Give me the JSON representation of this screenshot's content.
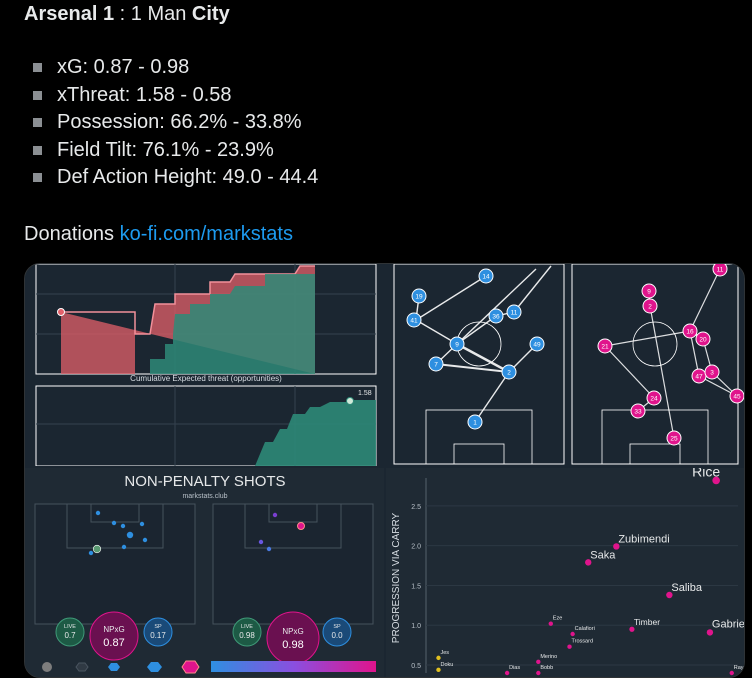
{
  "header": {
    "home_team": "Arsenal",
    "home_score": "1",
    "separator": ":",
    "away_score": "1",
    "away_team_prefix": "Man",
    "away_team_suffix": "City"
  },
  "stats": [
    {
      "label": "xG: 0.87 - 0.98"
    },
    {
      "label": "xThreat: 1.58 - 0.58"
    },
    {
      "label": "Possession: 66.2% - 33.8%"
    },
    {
      "label": "Field Tilt: 76.1% - 23.9%"
    },
    {
      "label": "Def Action Height: 49.0 - 44.4"
    }
  ],
  "donations": {
    "label": "Donations",
    "link": "ko-fi.com/markstats"
  },
  "colors": {
    "home": "#e3606a",
    "away": "#2e8a78",
    "home_node": "#2e8fe0",
    "away_node": "#e0148c",
    "link": "#1d9bf0"
  },
  "cumulative_panel": {
    "caption": "Cumulative Expected threat (opportunities)",
    "end_value": "1.58"
  },
  "shots_panel": {
    "title": "NON-PENALTY SHOTS",
    "subtitle": "markstats.club",
    "home": {
      "live_label": "LIVE",
      "live_value": "0.7",
      "npxg_label": "NPxG",
      "npxg_value": "0.87",
      "sp_label": "SP",
      "sp_value": "0.17"
    },
    "away": {
      "live_label": "LIVE",
      "live_value": "0.98",
      "npxg_label": "NPxG",
      "npxg_value": "0.98",
      "sp_label": "SP",
      "sp_value": "0.0"
    }
  },
  "pass_networks": {
    "home_nodes": [
      "14",
      "19",
      "41",
      "36",
      "11",
      "9",
      "49",
      "7",
      "2",
      "1"
    ],
    "away_nodes": [
      "9",
      "2",
      "16",
      "21",
      "20",
      "47",
      "3",
      "45",
      "24",
      "33",
      "25",
      "11"
    ]
  },
  "chart_data": {
    "type": "scatter",
    "ylabel": "PROGRESSION VIA CARRY",
    "y_ticks": [
      "2.5",
      "2.0",
      "1.5",
      "1.0",
      "0.5"
    ],
    "ylim": [
      0.4,
      2.85
    ],
    "xlim": [
      0,
      10
    ],
    "points": [
      {
        "name": "Rice",
        "x": 9.3,
        "y": 2.82,
        "size": "large"
      },
      {
        "name": "Zubimendi",
        "x": 6.1,
        "y": 1.99,
        "size": "medium"
      },
      {
        "name": "Saka",
        "x": 5.2,
        "y": 1.79,
        "size": "medium"
      },
      {
        "name": "Saliba",
        "x": 7.8,
        "y": 1.38,
        "size": "medium"
      },
      {
        "name": "Gabriel",
        "x": 9.1,
        "y": 0.91,
        "size": "medium"
      },
      {
        "name": "Timber",
        "x": 6.6,
        "y": 0.95,
        "size": "small"
      },
      {
        "name": "Eze",
        "x": 4.0,
        "y": 1.02,
        "size": "tiny"
      },
      {
        "name": "Calafiori",
        "x": 4.7,
        "y": 0.89,
        "size": "tiny"
      },
      {
        "name": "Trossard",
        "x": 4.6,
        "y": 0.73,
        "size": "tiny"
      },
      {
        "name": "Merino",
        "x": 3.6,
        "y": 0.54,
        "size": "tiny"
      },
      {
        "name": "Jes",
        "x": 0.4,
        "y": 0.59,
        "size": "tiny",
        "team": "away"
      },
      {
        "name": "Doku",
        "x": 0.4,
        "y": 0.44,
        "size": "tiny",
        "team": "away"
      },
      {
        "name": "Dias",
        "x": 2.6,
        "y": 0.4,
        "size": "tiny"
      },
      {
        "name": "Bobb",
        "x": 3.6,
        "y": 0.4,
        "size": "tiny"
      },
      {
        "name": "Raya",
        "x": 9.8,
        "y": 0.4,
        "size": "tiny"
      }
    ]
  }
}
